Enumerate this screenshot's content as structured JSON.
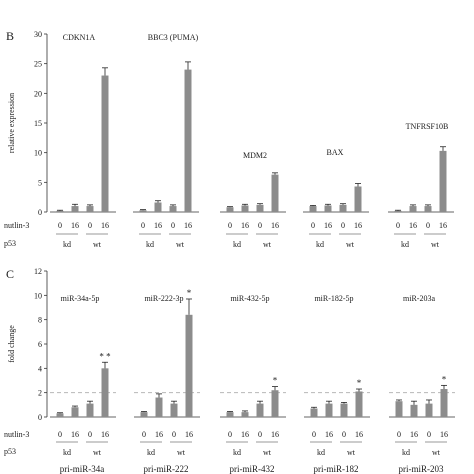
{
  "chart_data": [
    {
      "panel_label": "B",
      "type": "bar",
      "ylabel": "relative expression",
      "ylim": [
        0,
        30
      ],
      "yticks": [
        0,
        5,
        10,
        15,
        20,
        25,
        30
      ],
      "row_labels": {
        "treatment": "nutlin-3",
        "genotype": "p53"
      },
      "bar_x_labels": [
        "0",
        "16",
        "0",
        "16"
      ],
      "group_labels": [
        "kd",
        "wt"
      ],
      "groups": [
        {
          "name": "CDKN1A",
          "values": [
            0.2,
            1.0,
            1.0,
            23.0
          ],
          "errors": [
            0.1,
            0.3,
            0.2,
            1.3
          ]
        },
        {
          "name": "BBC3 (PUMA)",
          "values": [
            0.3,
            1.6,
            1.0,
            24.0
          ],
          "errors": [
            0.1,
            0.3,
            0.2,
            1.3
          ]
        },
        {
          "name": "MDM2",
          "values": [
            0.8,
            1.1,
            1.2,
            6.3
          ],
          "errors": [
            0.1,
            0.2,
            0.2,
            0.3
          ]
        },
        {
          "name": "BAX",
          "values": [
            1.0,
            1.1,
            1.2,
            4.3
          ],
          "errors": [
            0.1,
            0.2,
            0.2,
            0.5
          ]
        },
        {
          "name": "TNFRSF10B",
          "values": [
            0.2,
            1.0,
            1.0,
            10.3
          ],
          "errors": [
            0.1,
            0.2,
            0.2,
            0.7
          ]
        }
      ]
    },
    {
      "panel_label": "C",
      "type": "bar",
      "ylabel": "fold change",
      "ylim": [
        0,
        12
      ],
      "yticks": [
        0,
        2,
        4,
        6,
        8,
        10,
        12
      ],
      "reference_line": 2,
      "row_labels": {
        "treatment": "nutlin-3",
        "genotype": "p53"
      },
      "bar_x_labels": [
        "0",
        "16",
        "0",
        "16"
      ],
      "group_labels": [
        "kd",
        "wt"
      ],
      "groups": [
        {
          "name": "miR-34a-5p",
          "values": [
            0.3,
            0.8,
            1.1,
            4.0
          ],
          "errors": [
            0.05,
            0.1,
            0.2,
            0.5
          ],
          "annotation": "* *"
        },
        {
          "name": "miR-222-3p",
          "values": [
            0.4,
            1.6,
            1.1,
            8.4
          ],
          "errors": [
            0.05,
            0.3,
            0.2,
            1.3
          ],
          "annotation": "*"
        },
        {
          "name": "miR-432-5p",
          "values": [
            0.4,
            0.4,
            1.1,
            2.2
          ],
          "errors": [
            0.05,
            0.1,
            0.2,
            0.3
          ],
          "annotation": "*"
        },
        {
          "name": "miR-182-5p",
          "values": [
            0.7,
            1.1,
            1.1,
            2.1
          ],
          "errors": [
            0.1,
            0.2,
            0.1,
            0.2
          ],
          "annotation": "*"
        },
        {
          "name": "miR-203a",
          "values": [
            1.3,
            1.0,
            1.1,
            2.3
          ],
          "errors": [
            0.1,
            0.3,
            0.3,
            0.3
          ],
          "annotation": "*"
        }
      ],
      "footer_labels": [
        "pri-miR-34a",
        "pri-miR-222",
        "pri-miR-432",
        "pri-miR-182",
        "pri-miR-203"
      ]
    }
  ],
  "colors": {
    "bar": "#8c8c8c",
    "axis": "#333333",
    "reference_line": "#b8b8b8",
    "text": "#1a1a1a"
  }
}
